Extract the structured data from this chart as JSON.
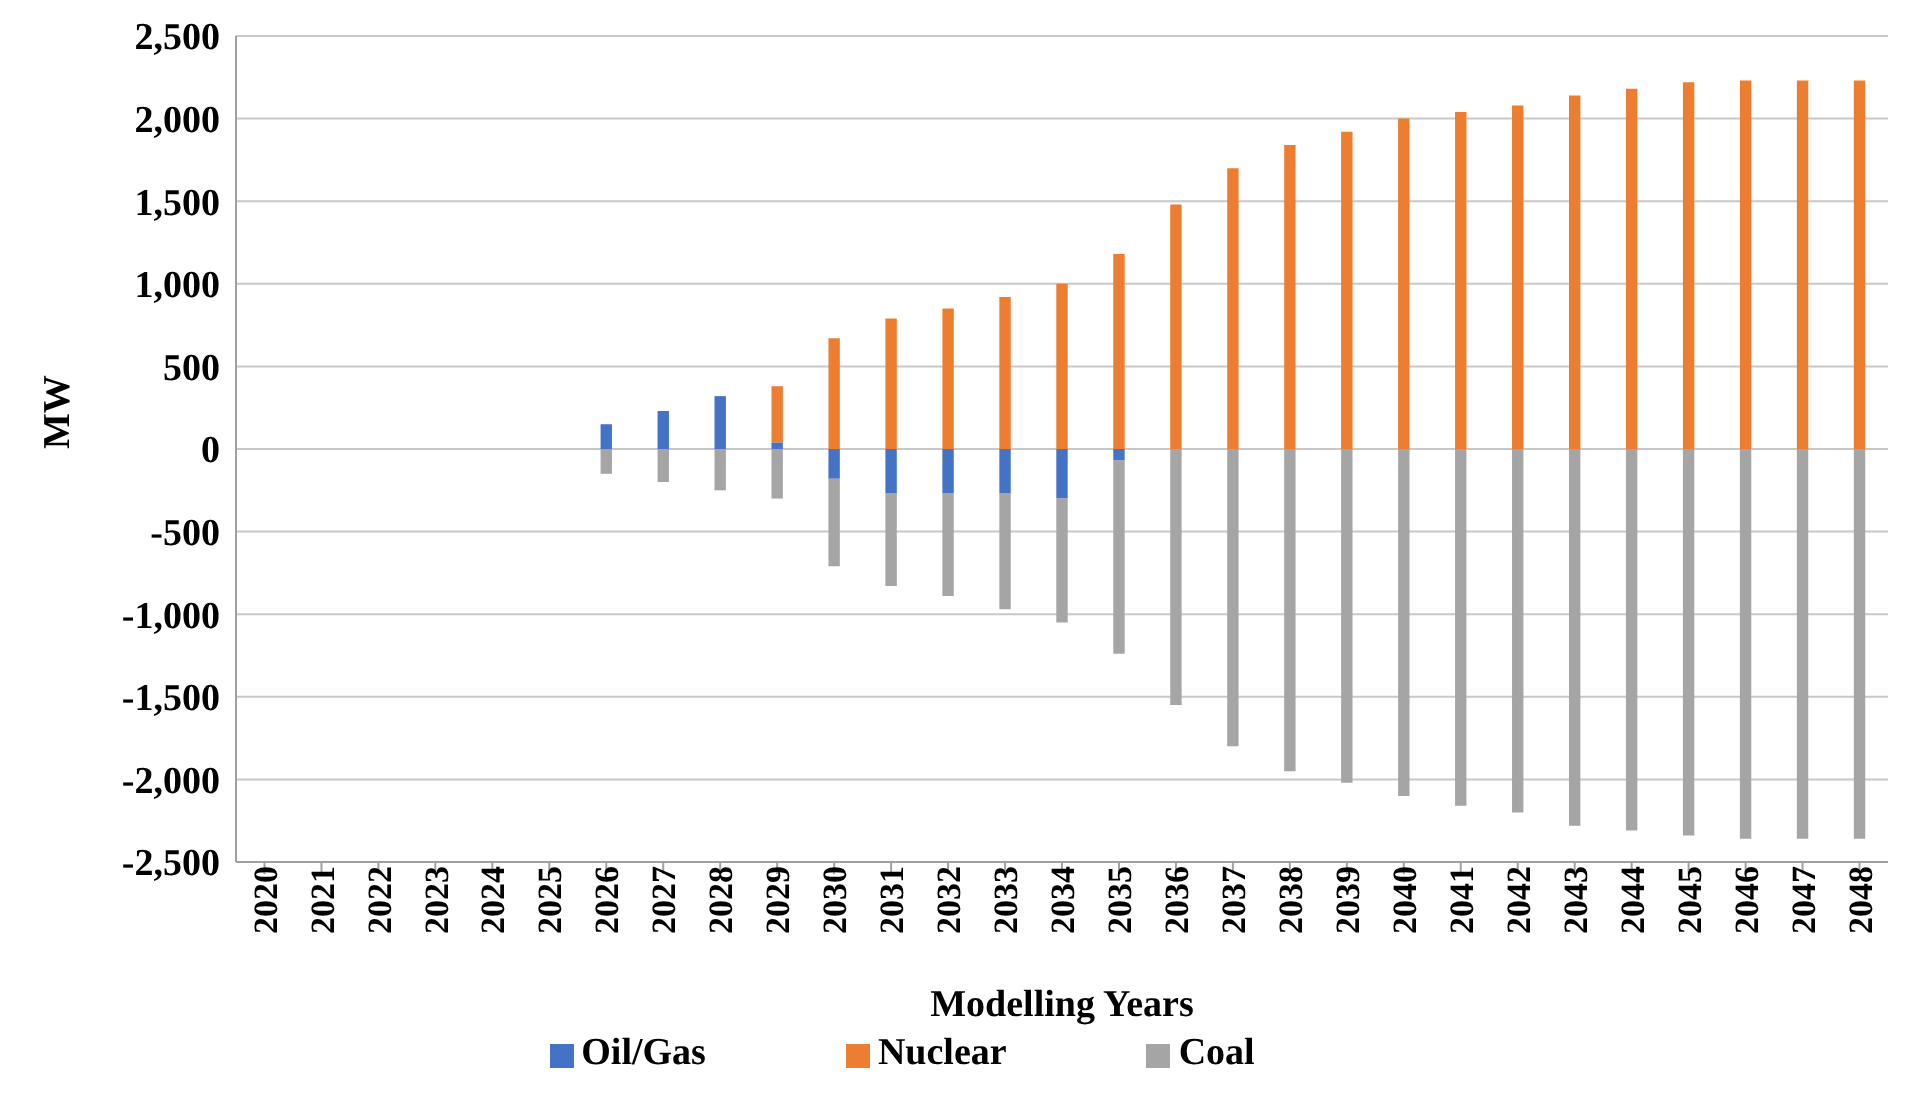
{
  "chart_data": {
    "type": "bar",
    "stacked": true,
    "xlabel": "Modelling Years",
    "ylabel": "MW",
    "categories": [
      "2020",
      "2021",
      "2022",
      "2023",
      "2024",
      "2025",
      "2026",
      "2027",
      "2028",
      "2029",
      "2030",
      "2031",
      "2032",
      "2033",
      "2034",
      "2035",
      "2036",
      "2037",
      "2038",
      "2039",
      "2040",
      "2041",
      "2042",
      "2043",
      "2044",
      "2045",
      "2046",
      "2047",
      "2048"
    ],
    "series": [
      {
        "name": "Oil/Gas",
        "color": "#4472c4",
        "values": [
          0,
          0,
          0,
          0,
          0,
          0,
          150,
          230,
          320,
          40,
          -180,
          -270,
          -270,
          -270,
          -300,
          -70,
          0,
          0,
          0,
          0,
          0,
          0,
          0,
          0,
          0,
          0,
          0,
          0,
          0
        ]
      },
      {
        "name": "Nuclear",
        "color": "#ed7d31",
        "values": [
          0,
          0,
          0,
          0,
          0,
          0,
          0,
          0,
          0,
          340,
          670,
          790,
          850,
          920,
          1000,
          1180,
          1480,
          1700,
          1840,
          1920,
          2000,
          2040,
          2080,
          2140,
          2180,
          2220,
          2230,
          2230,
          2230
        ]
      },
      {
        "name": "Coal",
        "color": "#a5a5a5",
        "values": [
          0,
          0,
          0,
          0,
          0,
          0,
          -150,
          -200,
          -250,
          -300,
          -530,
          -560,
          -620,
          -700,
          -750,
          -1170,
          -1550,
          -1800,
          -1950,
          -2020,
          -2100,
          -2160,
          -2200,
          -2280,
          -2310,
          -2340,
          -2360,
          -2360,
          -2360
        ]
      }
    ],
    "ylim": [
      -2500,
      2500
    ],
    "yticks": [
      {
        "value": -2500,
        "label": "-2,500"
      },
      {
        "value": -2000,
        "label": "-2,000"
      },
      {
        "value": -1500,
        "label": "-1,500"
      },
      {
        "value": -1000,
        "label": "-1,000"
      },
      -500,
      0,
      500,
      {
        "value": 1000,
        "label": "1,000"
      },
      {
        "value": 1500,
        "label": "1,500"
      },
      {
        "value": 2000,
        "label": "2,000"
      },
      {
        "value": 2500,
        "label": "2,500"
      }
    ],
    "grid": "y",
    "legend": "bottom"
  }
}
